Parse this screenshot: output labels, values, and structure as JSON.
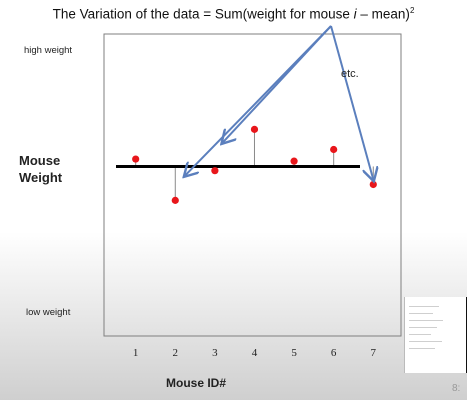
{
  "title": {
    "prefix": "The Variation of the data = Sum(weight for mouse ",
    "italic": "i",
    "suffix": " – mean)",
    "sup": "2"
  },
  "labels": {
    "high_weight": "high weight",
    "low_weight": "low weight",
    "mouse_weight_line1": "Mouse",
    "mouse_weight_line2": "Weight",
    "x_title": "Mouse ID#",
    "etc": "etc."
  },
  "corner_text": "8:",
  "colors": {
    "point": "#e8161b",
    "arrow": "#5b7fbd",
    "mean_line": "#000000",
    "residual": "#8a8a8a"
  },
  "chart_data": {
    "type": "scatter",
    "title": "The Variation of the data = Sum(weight for mouse i – mean)²",
    "xlabel": "Mouse ID#",
    "ylabel": "",
    "categories": [
      "1",
      "2",
      "3",
      "4",
      "5",
      "6",
      "7"
    ],
    "x": [
      1,
      2,
      3,
      4,
      5,
      6,
      7
    ],
    "values": [
      0.62,
      0.23,
      0.51,
      0.9,
      0.6,
      0.71,
      0.38
    ],
    "mean": 0.55,
    "xlim": [
      0.2,
      7.7
    ],
    "ylim": [
      -1.05,
      1.8
    ],
    "grid": false,
    "arrows_target_x": [
      2.25,
      3.2,
      7
    ]
  }
}
